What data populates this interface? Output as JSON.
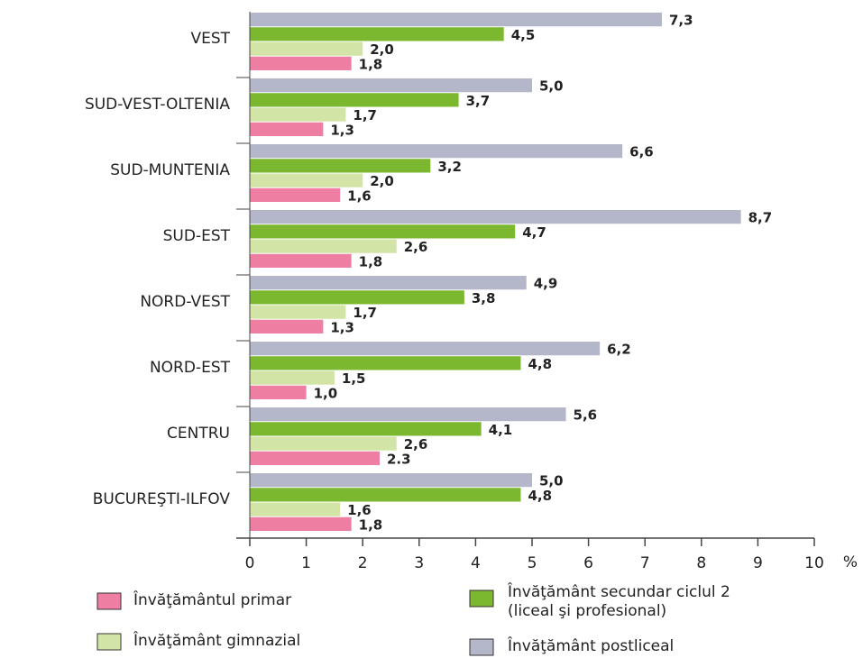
{
  "chart_data": {
    "type": "hbar",
    "categories": [
      "VEST",
      "SUD-VEST-OLTENIA",
      "SUD-MUNTENIA",
      "SUD-EST",
      "NORD-VEST",
      "NORD-EST",
      "CENTRU",
      "BUCUREŞTI-ILFOV"
    ],
    "series": [
      {
        "name": "Învăţământul primar",
        "color": "#ee7fa2",
        "values": [
          1.8,
          1.3,
          1.6,
          1.8,
          1.3,
          1.0,
          2.3,
          1.8
        ],
        "value_labels": [
          "1,8",
          "1,3",
          "1,6",
          "1,8",
          "1,3",
          "1,0",
          "2.3",
          "1,8"
        ]
      },
      {
        "name": "Învăţământ gimnazial",
        "color": "#d3e5a6",
        "values": [
          2.0,
          1.7,
          2.0,
          2.6,
          1.7,
          1.5,
          2.6,
          1.6
        ],
        "value_labels": [
          "2,0",
          "1,7",
          "2,0",
          "2,6",
          "1,7",
          "1,5",
          "2,6",
          "1,6"
        ]
      },
      {
        "name": "Învăţământ secundar ciclul 2\n(liceal şi profesional)",
        "color": "#7cb82f",
        "values": [
          4.5,
          3.7,
          3.2,
          4.7,
          3.8,
          4.8,
          4.1,
          4.8
        ],
        "value_labels": [
          "4,5",
          "3,7",
          "3,2",
          "4,7",
          "3,8",
          "4,8",
          "4,1",
          "4,8"
        ]
      },
      {
        "name": "Învăţământ postliceal",
        "color": "#b4b7c9",
        "values": [
          7.3,
          5.0,
          6.6,
          8.7,
          4.9,
          6.2,
          5.6,
          5.0
        ],
        "value_labels": [
          "7,3",
          "5,0",
          "6,6",
          "8,7",
          "4,9",
          "6,2",
          "5,6",
          "5,0"
        ]
      }
    ],
    "xlabel": "%",
    "xlim": [
      0,
      10
    ],
    "xticks": [
      0,
      1,
      2,
      3,
      4,
      5,
      6,
      7,
      8,
      9,
      10
    ]
  }
}
